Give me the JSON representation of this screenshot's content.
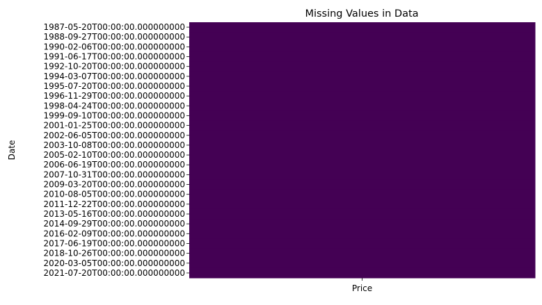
{
  "chart_data": {
    "type": "heatmap",
    "title": "Missing Values in Data",
    "xlabel": "",
    "ylabel": "Date",
    "x_categories": [
      "Price"
    ],
    "y_tick_labels": [
      "1987-05-20T00:00:00.000000000",
      "1988-09-27T00:00:00.000000000",
      "1990-02-06T00:00:00.000000000",
      "1991-06-17T00:00:00.000000000",
      "1992-10-20T00:00:00.000000000",
      "1994-03-07T00:00:00.000000000",
      "1995-07-20T00:00:00.000000000",
      "1996-11-29T00:00:00.000000000",
      "1998-04-24T00:00:00.000000000",
      "1999-09-10T00:00:00.000000000",
      "2001-01-25T00:00:00.000000000",
      "2002-06-05T00:00:00.000000000",
      "2003-10-08T00:00:00.000000000",
      "2005-02-10T00:00:00.000000000",
      "2006-06-19T00:00:00.000000000",
      "2007-10-31T00:00:00.000000000",
      "2009-03-20T00:00:00.000000000",
      "2010-08-05T00:00:00.000000000",
      "2011-12-22T00:00:00.000000000",
      "2013-05-16T00:00:00.000000000",
      "2014-09-29T00:00:00.000000000",
      "2016-02-09T00:00:00.000000000",
      "2017-06-19T00:00:00.000000000",
      "2018-10-26T00:00:00.000000000",
      "2020-03-05T00:00:00.000000000",
      "2021-07-20T00:00:00.000000000"
    ],
    "values": [
      [
        false
      ],
      [
        false
      ],
      [
        false
      ],
      [
        false
      ],
      [
        false
      ],
      [
        false
      ],
      [
        false
      ],
      [
        false
      ],
      [
        false
      ],
      [
        false
      ],
      [
        false
      ],
      [
        false
      ],
      [
        false
      ],
      [
        false
      ],
      [
        false
      ],
      [
        false
      ],
      [
        false
      ],
      [
        false
      ],
      [
        false
      ],
      [
        false
      ],
      [
        false
      ],
      [
        false
      ],
      [
        false
      ],
      [
        false
      ],
      [
        false
      ],
      [
        false
      ]
    ],
    "colormap": "viridis",
    "colors": {
      "not_missing": "#440154",
      "missing": "#fde725"
    },
    "colorbar": false
  }
}
